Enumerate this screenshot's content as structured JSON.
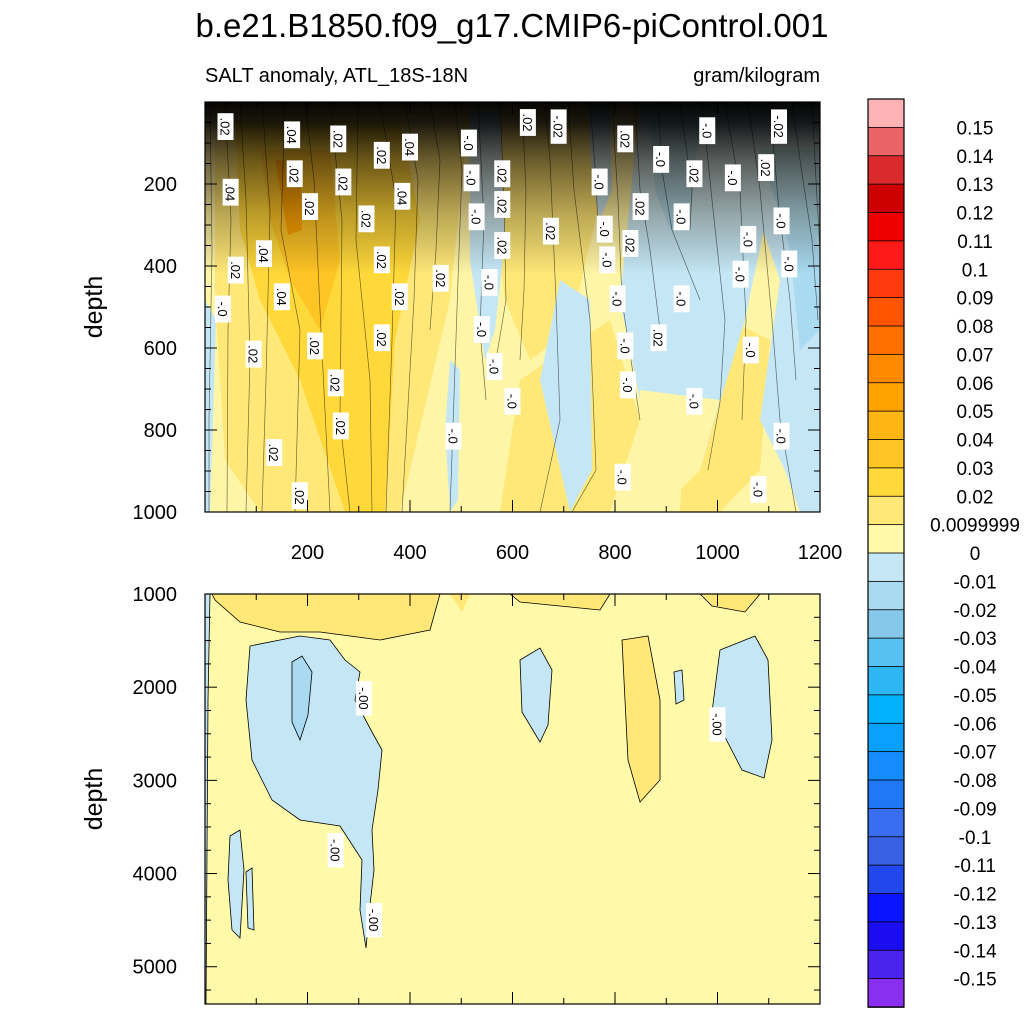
{
  "chart_data": {
    "type": "heatmap",
    "title": "b.e21.B1850.f09_g17.CMIP6-piControl.001",
    "left_subtitle": "SALT anomaly, ATL_18S-18N",
    "right_subtitle": "gram/kilogram",
    "x_label": "",
    "x_range": [
      0,
      1200
    ],
    "x_ticks": [
      "200",
      "400",
      "600",
      "800",
      "1000",
      "1200"
    ],
    "panels": [
      {
        "name": "upper",
        "ylabel": "depth",
        "ylim": [
          0,
          1000
        ],
        "y_ticks": [
          "200",
          "400",
          "600",
          "800",
          "1000"
        ],
        "contour_labels": [
          {
            "x": 40,
            "depth": 60,
            "text": ".02"
          },
          {
            "x": 170,
            "depth": 80,
            "text": ".04"
          },
          {
            "x": 260,
            "depth": 90,
            "text": ".02"
          },
          {
            "x": 345,
            "depth": 130,
            "text": ".02"
          },
          {
            "x": 400,
            "depth": 110,
            "text": ".04"
          },
          {
            "x": 515,
            "depth": 100,
            "text": "-.0"
          },
          {
            "x": 630,
            "depth": 50,
            "text": ".02"
          },
          {
            "x": 690,
            "depth": 60,
            "text": "-.02"
          },
          {
            "x": 820,
            "depth": 90,
            "text": ".02"
          },
          {
            "x": 980,
            "depth": 70,
            "text": "-.0"
          },
          {
            "x": 1120,
            "depth": 60,
            "text": "-.02"
          },
          {
            "x": 175,
            "depth": 175,
            "text": ".02"
          },
          {
            "x": 270,
            "depth": 195,
            "text": ".02"
          },
          {
            "x": 50,
            "depth": 220,
            "text": ".04"
          },
          {
            "x": 385,
            "depth": 230,
            "text": ".04"
          },
          {
            "x": 205,
            "depth": 255,
            "text": ".02"
          },
          {
            "x": 315,
            "depth": 285,
            "text": ".02"
          },
          {
            "x": 520,
            "depth": 185,
            "text": "-.0"
          },
          {
            "x": 580,
            "depth": 175,
            "text": ".02"
          },
          {
            "x": 770,
            "depth": 195,
            "text": "-.0"
          },
          {
            "x": 890,
            "depth": 140,
            "text": "-.0"
          },
          {
            "x": 955,
            "depth": 175,
            "text": ".02"
          },
          {
            "x": 1030,
            "depth": 185,
            "text": "-.0"
          },
          {
            "x": 1095,
            "depth": 160,
            "text": ".02"
          },
          {
            "x": 530,
            "depth": 280,
            "text": "-.0"
          },
          {
            "x": 580,
            "depth": 250,
            "text": ".02"
          },
          {
            "x": 675,
            "depth": 315,
            "text": ".02"
          },
          {
            "x": 780,
            "depth": 310,
            "text": "-.0"
          },
          {
            "x": 850,
            "depth": 255,
            "text": ".02"
          },
          {
            "x": 930,
            "depth": 280,
            "text": "-.0"
          },
          {
            "x": 1125,
            "depth": 290,
            "text": "-.0"
          },
          {
            "x": 115,
            "depth": 370,
            "text": ".04"
          },
          {
            "x": 60,
            "depth": 410,
            "text": ".02"
          },
          {
            "x": 345,
            "depth": 385,
            "text": ".02"
          },
          {
            "x": 580,
            "depth": 350,
            "text": ".02"
          },
          {
            "x": 785,
            "depth": 385,
            "text": "-.0"
          },
          {
            "x": 830,
            "depth": 345,
            "text": ".02"
          },
          {
            "x": 1060,
            "depth": 335,
            "text": "-.0"
          },
          {
            "x": 1140,
            "depth": 395,
            "text": "-.0"
          },
          {
            "x": 460,
            "depth": 430,
            "text": ".02"
          },
          {
            "x": 555,
            "depth": 440,
            "text": "-.0"
          },
          {
            "x": 1045,
            "depth": 420,
            "text": "-.0"
          },
          {
            "x": 35,
            "depth": 505,
            "text": "-.0"
          },
          {
            "x": 150,
            "depth": 475,
            "text": ".04"
          },
          {
            "x": 380,
            "depth": 475,
            "text": ".02"
          },
          {
            "x": 805,
            "depth": 480,
            "text": "-.0"
          },
          {
            "x": 930,
            "depth": 480,
            "text": "-.0"
          },
          {
            "x": 540,
            "depth": 555,
            "text": "-.0"
          },
          {
            "x": 345,
            "depth": 575,
            "text": ".02"
          },
          {
            "x": 215,
            "depth": 595,
            "text": ".02"
          },
          {
            "x": 95,
            "depth": 615,
            "text": ".02"
          },
          {
            "x": 820,
            "depth": 595,
            "text": "-.0"
          },
          {
            "x": 885,
            "depth": 575,
            "text": ".02"
          },
          {
            "x": 1065,
            "depth": 605,
            "text": "-.0"
          },
          {
            "x": 565,
            "depth": 645,
            "text": "-.0"
          },
          {
            "x": 255,
            "depth": 685,
            "text": ".02"
          },
          {
            "x": 600,
            "depth": 730,
            "text": "-.0"
          },
          {
            "x": 825,
            "depth": 690,
            "text": "-.0"
          },
          {
            "x": 955,
            "depth": 730,
            "text": "-.0"
          },
          {
            "x": 265,
            "depth": 790,
            "text": ".02"
          },
          {
            "x": 485,
            "depth": 815,
            "text": "-.0"
          },
          {
            "x": 1125,
            "depth": 815,
            "text": "-.0"
          },
          {
            "x": 135,
            "depth": 855,
            "text": ".02"
          },
          {
            "x": 815,
            "depth": 915,
            "text": "-.0"
          },
          {
            "x": 185,
            "depth": 960,
            "text": ".02"
          },
          {
            "x": 1080,
            "depth": 945,
            "text": "-.0"
          }
        ]
      },
      {
        "name": "lower",
        "ylabel": "depth",
        "ylim": [
          1000,
          5400
        ],
        "y_ticks": [
          "1000",
          "2000",
          "3000",
          "4000",
          "5000"
        ],
        "contour_labels": [
          {
            "x": 310,
            "depth": 2120,
            "text": "-.00"
          },
          {
            "x": 1000,
            "depth": 2400,
            "text": "-.00"
          },
          {
            "x": 255,
            "depth": 3750,
            "text": "-.00"
          },
          {
            "x": 330,
            "depth": 4500,
            "text": "-.00"
          }
        ]
      }
    ],
    "colorbar": {
      "labels": [
        "0.15",
        "0.14",
        "0.13",
        "0.12",
        "0.11",
        "0.1",
        "0.09",
        "0.08",
        "0.07",
        "0.06",
        "0.05",
        "0.04",
        "0.03",
        "0.02",
        "0.0099999",
        "0",
        "-0.01",
        "-0.02",
        "-0.03",
        "-0.04",
        "-0.05",
        "-0.06",
        "-0.07",
        "-0.08",
        "-0.09",
        "-0.1",
        "-0.11",
        "-0.12",
        "-0.13",
        "-0.14",
        "-0.15"
      ],
      "colors": [
        "#ffb3b5",
        "#e96467",
        "#db2a2e",
        "#cd0000",
        "#ef0000",
        "#ff1a1a",
        "#ff3a0d",
        "#ff5500",
        "#ff7000",
        "#ff8a00",
        "#ffa300",
        "#ffb514",
        "#ffc525",
        "#ffd83a",
        "#ffe878",
        "#fff9aa",
        "#c5e7f5",
        "#a9daf0",
        "#85c8ea",
        "#57c2f2",
        "#2eb6f2",
        "#00b2ff",
        "#0aa0ff",
        "#158cff",
        "#2178f7",
        "#3a6ef0",
        "#3760e3",
        "#2148ec",
        "#0a14ff",
        "#1b0df2",
        "#4c22ee",
        "#8a2ef0"
      ]
    }
  }
}
